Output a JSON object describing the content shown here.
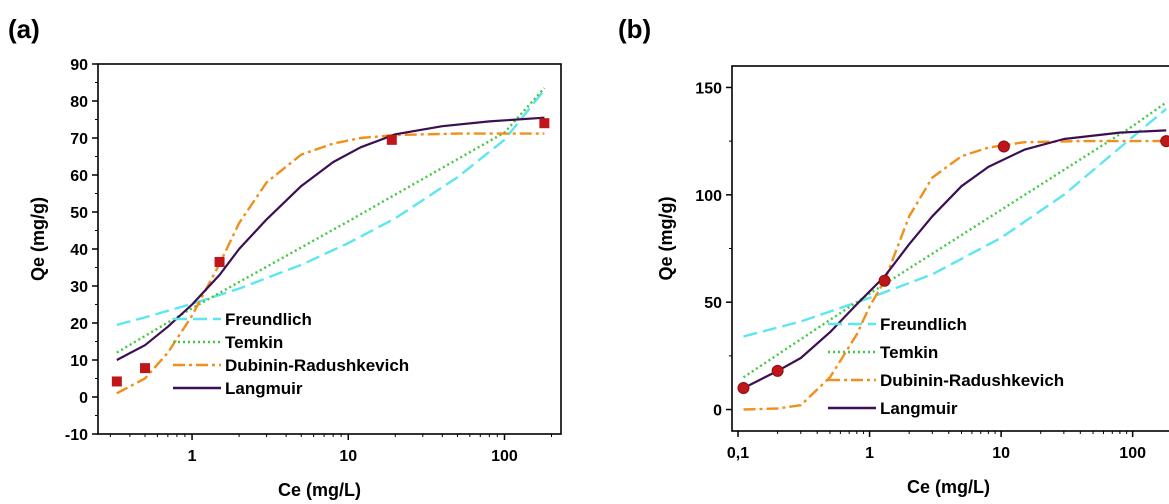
{
  "panel_labels": [
    "(a)",
    "(b)"
  ],
  "colors": {
    "freundlich": "#5ce6ef",
    "temkin": "#3ec93e",
    "dubinin": "#f0901a",
    "langmuir": "#3b0f52",
    "points_a": "#c0161a",
    "points_b": "#c0161a"
  },
  "chart_data": [
    {
      "id": "a",
      "type": "line",
      "xlabel": "Ce (mg/L)",
      "ylabel": "Qe (mg/g)",
      "xscale": "log",
      "xlim": [
        0.25,
        230
      ],
      "ylim": [
        -10,
        90
      ],
      "xticks": [
        1,
        10,
        100
      ],
      "xtick_labels": [
        "1",
        "10",
        "100"
      ],
      "yticks": [
        -10,
        0,
        10,
        20,
        30,
        40,
        50,
        60,
        70,
        80,
        90
      ],
      "ytick_labels": [
        "-10",
        "0",
        "10",
        "20",
        "30",
        "40",
        "50",
        "60",
        "70",
        "80",
        "90"
      ],
      "experimental": {
        "x": [
          0.33,
          0.5,
          1.5,
          19,
          180
        ],
        "y": [
          4.2,
          7.8,
          36.5,
          69.5,
          74
        ]
      },
      "series": [
        {
          "name": "Freundlich",
          "style": "dash",
          "color_key": "freundlich",
          "x": [
            0.33,
            0.5,
            1,
            2,
            5,
            10,
            20,
            50,
            100,
            180
          ],
          "y": [
            19.5,
            21.5,
            25.2,
            29.3,
            35.7,
            41.6,
            48.3,
            59.4,
            69.5,
            83
          ]
        },
        {
          "name": "Temkin",
          "style": "dot",
          "color_key": "temkin",
          "x": [
            0.33,
            1,
            10,
            100,
            180
          ],
          "y": [
            12,
            24,
            47.5,
            71.5,
            83.5
          ]
        },
        {
          "name": "Dubinin-Radushkevich",
          "style": "dashdot",
          "color_key": "dubinin",
          "x": [
            0.33,
            0.5,
            0.7,
            1,
            1.5,
            2,
            3,
            5,
            8,
            12,
            20,
            50,
            180
          ],
          "y": [
            1,
            5,
            12,
            22,
            36,
            47,
            58,
            65.5,
            68.5,
            70,
            70.8,
            71.2,
            71.2
          ]
        },
        {
          "name": "Langmuir",
          "style": "solid",
          "color_key": "langmuir",
          "x": [
            0.33,
            0.5,
            0.7,
            1,
            1.5,
            2,
            3,
            5,
            8,
            12,
            20,
            40,
            80,
            180
          ],
          "y": [
            10,
            14,
            19,
            25,
            33,
            40,
            48,
            57,
            63.5,
            67.5,
            71,
            73.2,
            74.5,
            75.5
          ]
        }
      ]
    },
    {
      "id": "b",
      "type": "line",
      "xlabel": "Ce (mg/L)",
      "ylabel": "Qe (mg/g)",
      "xscale": "log",
      "xlim": [
        0.09,
        250
      ],
      "ylim": [
        -10,
        160
      ],
      "xticks": [
        0.1,
        1,
        10,
        100
      ],
      "xtick_labels": [
        "0,1",
        "1",
        "10",
        "100"
      ],
      "yticks": [
        0,
        50,
        100,
        150
      ],
      "ytick_labels": [
        "0",
        "50",
        "100",
        "150"
      ],
      "experimental": {
        "x": [
          0.11,
          0.2,
          1.3,
          10.5,
          180
        ],
        "y": [
          10,
          18,
          60,
          122.5,
          125
        ]
      },
      "series": [
        {
          "name": "Freundlich",
          "style": "dash",
          "color_key": "freundlich",
          "x": [
            0.11,
            0.3,
            1,
            3,
            10,
            30,
            100,
            180
          ],
          "y": [
            34,
            41,
            52,
            63,
            80,
            100,
            127,
            140
          ]
        },
        {
          "name": "Temkin",
          "style": "dot",
          "color_key": "temkin",
          "x": [
            0.11,
            1,
            10,
            100,
            180
          ],
          "y": [
            15,
            54,
            93,
            132,
            143
          ]
        },
        {
          "name": "Dubinin-Radushkevich",
          "style": "dashdot",
          "color_key": "dubinin",
          "x": [
            0.11,
            0.2,
            0.3,
            0.5,
            0.8,
            1,
            1.3,
            2,
            3,
            5,
            8,
            15,
            40,
            180
          ],
          "y": [
            0,
            0.5,
            2,
            15,
            35,
            48,
            60,
            90,
            108,
            118,
            122,
            124.5,
            125,
            125
          ]
        },
        {
          "name": "Langmuir",
          "style": "solid",
          "color_key": "langmuir",
          "x": [
            0.11,
            0.2,
            0.3,
            0.5,
            0.8,
            1,
            1.3,
            2,
            3,
            5,
            8,
            15,
            30,
            80,
            180
          ],
          "y": [
            10,
            18,
            24,
            36,
            49,
            55,
            62,
            77,
            90,
            104,
            113,
            121,
            126,
            129,
            130
          ]
        }
      ]
    }
  ]
}
